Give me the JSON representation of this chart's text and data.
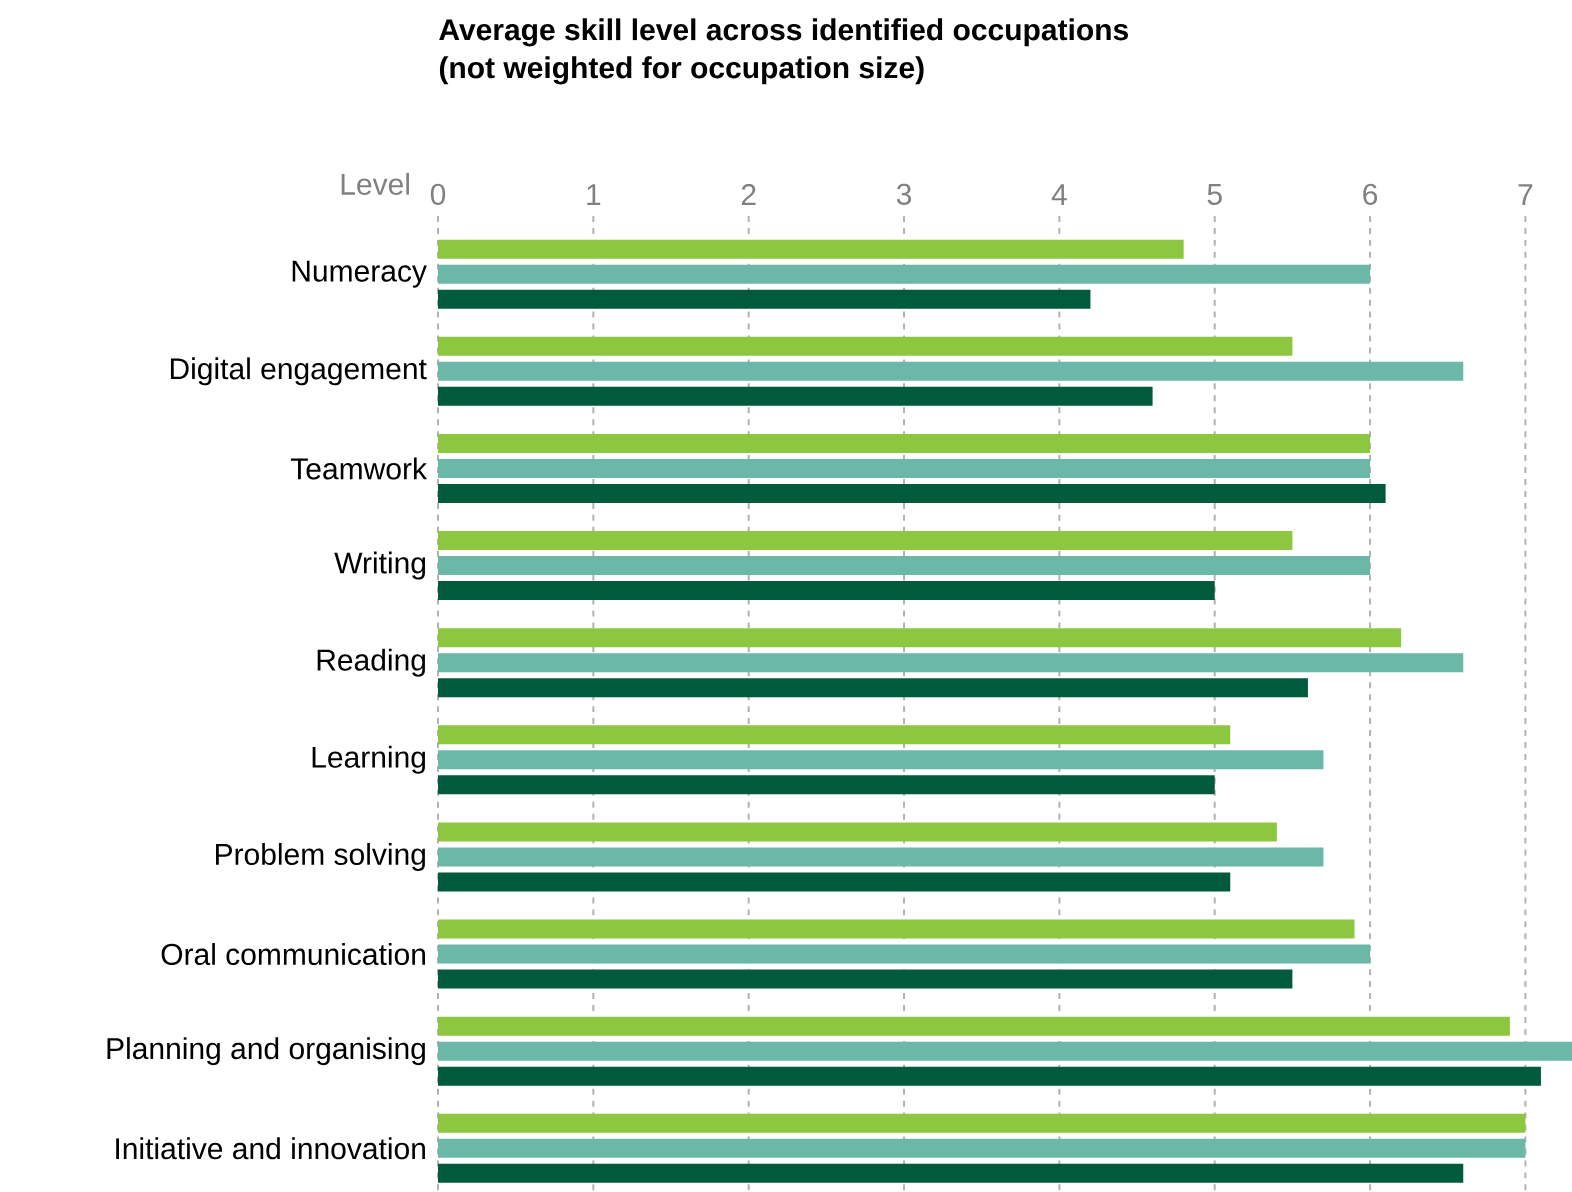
{
  "chart_data": {
    "type": "bar",
    "orientation": "horizontal",
    "title": "Average skill level across identified occupations",
    "subtitle": "(not weighted for occupation size)",
    "xlabel": "Level",
    "categories": [
      "Numeracy",
      "Digital engagement",
      "Teamwork",
      "Writing",
      "Reading",
      "Learning",
      "Problem solving",
      "Oral communication",
      "Planning and organising",
      "Initiative and innovation"
    ],
    "series": [
      {
        "color": "#8dc63f",
        "values": [
          4.8,
          5.5,
          6.0,
          5.5,
          6.2,
          5.1,
          5.4,
          5.9,
          6.9,
          7.0
        ]
      },
      {
        "color": "#6bb7a8",
        "values": [
          6.0,
          6.6,
          6.0,
          6.0,
          6.6,
          5.7,
          5.7,
          6.0,
          7.3,
          7.0
        ]
      },
      {
        "color": "#005a3c",
        "values": [
          4.2,
          4.6,
          6.1,
          5.0,
          5.6,
          5.0,
          5.1,
          5.5,
          7.1,
          6.6
        ]
      }
    ],
    "xlim": [
      0,
      7.3
    ],
    "xticks": [
      0,
      1,
      2,
      3,
      4,
      5,
      6,
      7
    ],
    "grid": "x"
  }
}
